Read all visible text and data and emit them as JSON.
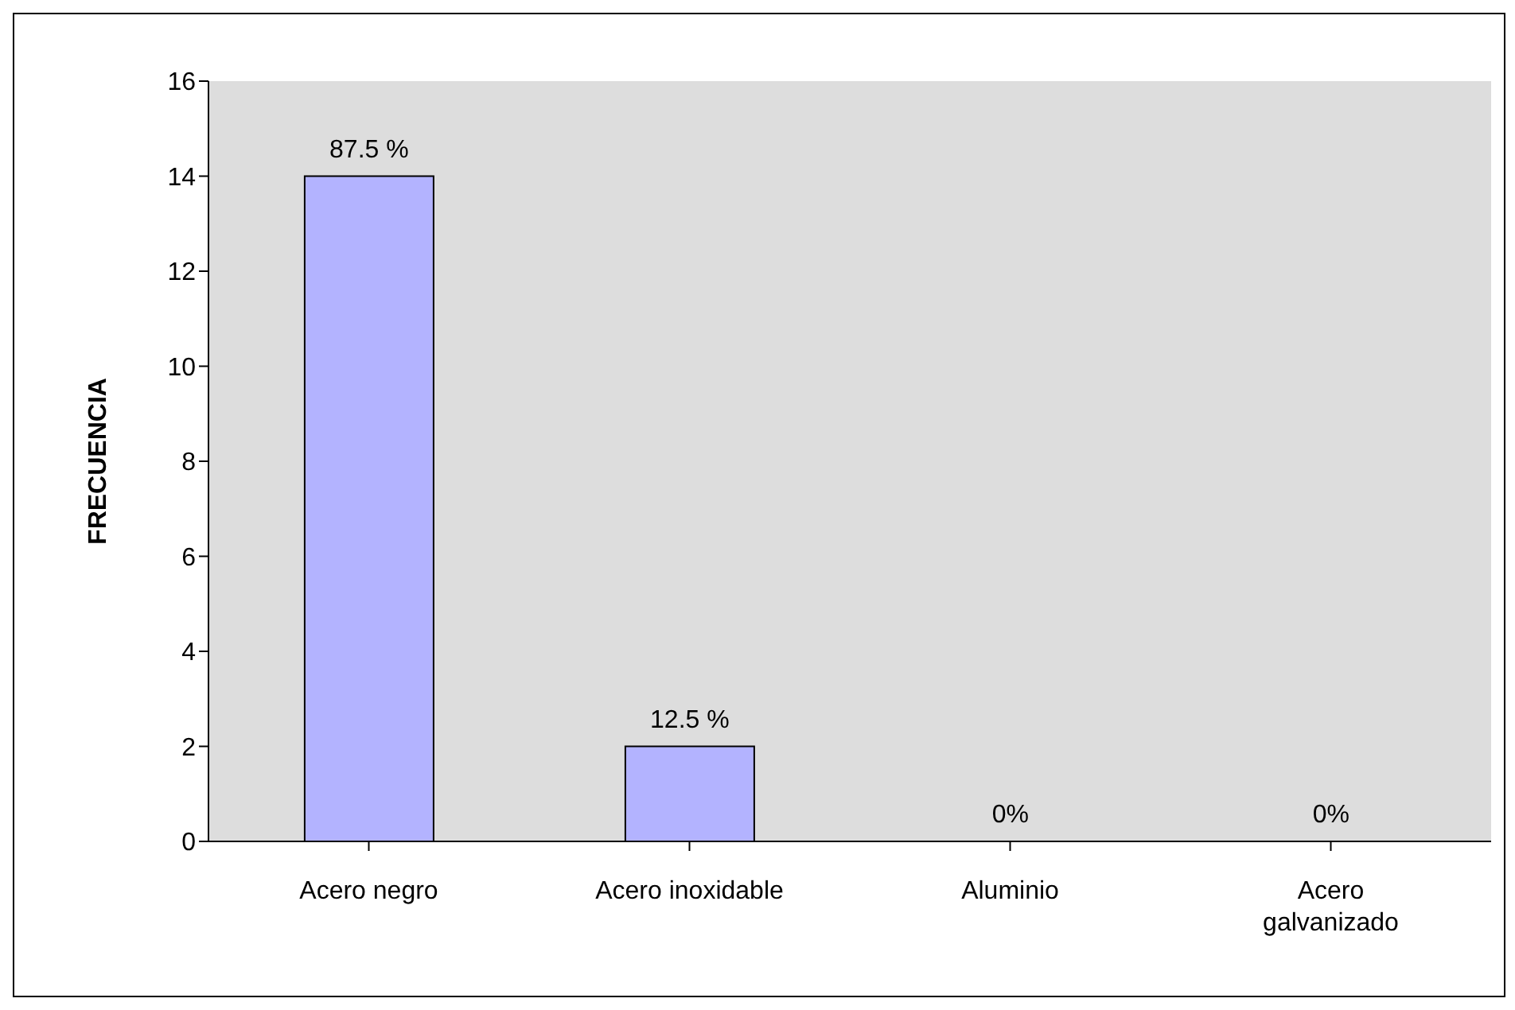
{
  "chart_data": {
    "type": "bar",
    "ylabel": "FRECUENCIA",
    "categories": [
      "Acero negro",
      "Acero inoxidable",
      "Aluminio",
      "Acero galvanizado"
    ],
    "values": [
      14,
      2,
      0,
      0
    ],
    "annotations": [
      {
        "text": "87.5 %",
        "x": "Acero negro",
        "y": 14
      },
      {
        "text": "12.5 %",
        "x": "Acero inoxidable",
        "y": 2
      },
      {
        "text": "0%",
        "x": "Aluminio",
        "y": 0
      },
      {
        "text": "0%",
        "x": "Acero galvanizado",
        "y": 0
      }
    ],
    "color": "#b3b3ff",
    "ylim": [
      0,
      16
    ],
    "yticks": [
      0,
      2,
      4,
      6,
      8,
      10,
      12,
      14,
      16
    ],
    "legend": false
  }
}
